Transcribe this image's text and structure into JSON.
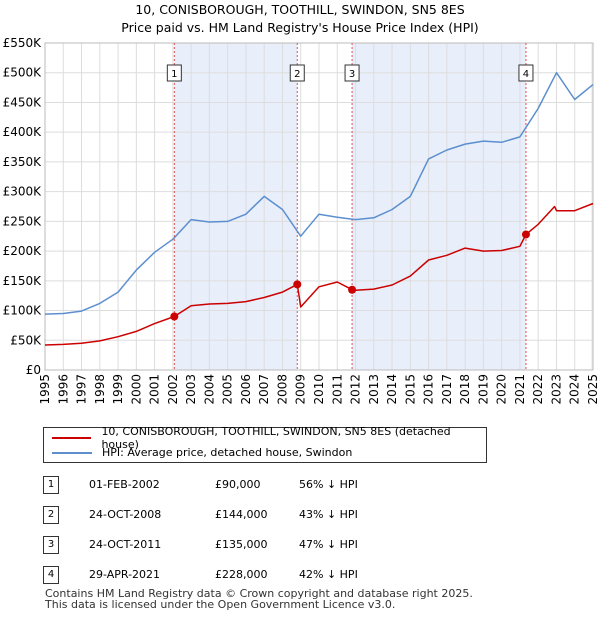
{
  "title": "10, CONISBOROUGH, TOOTHILL, SWINDON, SN5 8ES",
  "subtitle": "Price paid vs. HM Land Registry's House Price Index (HPI)",
  "legend": {
    "property": "10, CONISBOROUGH, TOOTHILL, SWINDON, SN5 8ES (detached house)",
    "hpi": "HPI: Average price, detached house, Swindon"
  },
  "sales": [
    {
      "num": "1",
      "date": "01-FEB-2002",
      "price": "£90,000",
      "hpi": "56% ↓ HPI"
    },
    {
      "num": "2",
      "date": "24-OCT-2008",
      "price": "£144,000",
      "hpi": "43% ↓ HPI"
    },
    {
      "num": "3",
      "date": "24-OCT-2011",
      "price": "£135,000",
      "hpi": "47% ↓ HPI"
    },
    {
      "num": "4",
      "date": "29-APR-2021",
      "price": "£228,000",
      "hpi": "42% ↓ HPI"
    }
  ],
  "footer": {
    "line1": "Contains HM Land Registry data © Crown copyright and database right 2025.",
    "line2": "This data is licensed under the Open Government Licence v3.0."
  },
  "chart_data": {
    "type": "line",
    "x_range": [
      1995,
      2025
    ],
    "ylim": [
      0,
      550000
    ],
    "y_ticks": [
      "£0",
      "£50K",
      "£100K",
      "£150K",
      "£200K",
      "£250K",
      "£300K",
      "£350K",
      "£400K",
      "£450K",
      "£500K",
      "£550K"
    ],
    "x_ticks": [
      "1995",
      "1996",
      "1997",
      "1998",
      "1999",
      "2000",
      "2001",
      "2002",
      "2003",
      "2004",
      "2005",
      "2006",
      "2007",
      "2008",
      "2009",
      "2010",
      "2011",
      "2012",
      "2013",
      "2014",
      "2015",
      "2016",
      "2017",
      "2018",
      "2019",
      "2020",
      "2021",
      "2022",
      "2023",
      "2024",
      "2025"
    ],
    "grid": true,
    "colors": {
      "property": "#cc0000",
      "hpi": "#5b8fcf",
      "band": "#e8eefa",
      "marker": "#e05050"
    },
    "shaded_spans": [
      [
        2002.08,
        2008.81
      ],
      [
        2011.81,
        2021.33
      ]
    ],
    "markers": [
      {
        "label": "1",
        "x": 2002.08,
        "y": 90000
      },
      {
        "label": "2",
        "x": 2008.81,
        "y": 144000
      },
      {
        "label": "3",
        "x": 2011.81,
        "y": 135000
      },
      {
        "label": "4",
        "x": 2021.33,
        "y": 228000
      }
    ],
    "series": [
      {
        "name": "10, CONISBOROUGH, TOOTHILL, SWINDON, SN5 8ES (detached house)",
        "x": [
          1995,
          1996,
          1997,
          1998,
          1999,
          2000,
          2001,
          2002.08,
          2003,
          2004,
          2005,
          2006,
          2007,
          2008,
          2008.81,
          2009,
          2010,
          2011,
          2011.81,
          2012,
          2013,
          2014,
          2015,
          2016,
          2017,
          2018,
          2019,
          2020,
          2021,
          2021.33,
          2022,
          2022.9,
          2023,
          2024,
          2025
        ],
        "values": [
          42000,
          43000,
          45000,
          49000,
          56000,
          65000,
          78000,
          90000,
          108000,
          111000,
          112000,
          115000,
          122000,
          131000,
          144000,
          106000,
          140000,
          148000,
          135000,
          134000,
          136000,
          143000,
          158000,
          185000,
          193000,
          205000,
          200000,
          201000,
          208000,
          228000,
          245000,
          275000,
          268000,
          268000,
          280000
        ]
      },
      {
        "name": "HPI: Average price, detached house, Swindon",
        "x": [
          1995,
          1996,
          1997,
          1998,
          1999,
          2000,
          2001,
          2002,
          2003,
          2004,
          2005,
          2006,
          2007,
          2008,
          2009,
          2010,
          2011,
          2012,
          2013,
          2014,
          2015,
          2016,
          2017,
          2018,
          2019,
          2020,
          2021,
          2022,
          2023,
          2024,
          2025
        ],
        "values": [
          94000,
          95000,
          99000,
          112000,
          131000,
          168000,
          198000,
          220000,
          253000,
          249000,
          250000,
          262000,
          292000,
          270000,
          225000,
          262000,
          257000,
          253000,
          256000,
          270000,
          292000,
          355000,
          370000,
          380000,
          385000,
          383000,
          392000,
          440000,
          500000,
          455000,
          480000
        ]
      }
    ]
  }
}
